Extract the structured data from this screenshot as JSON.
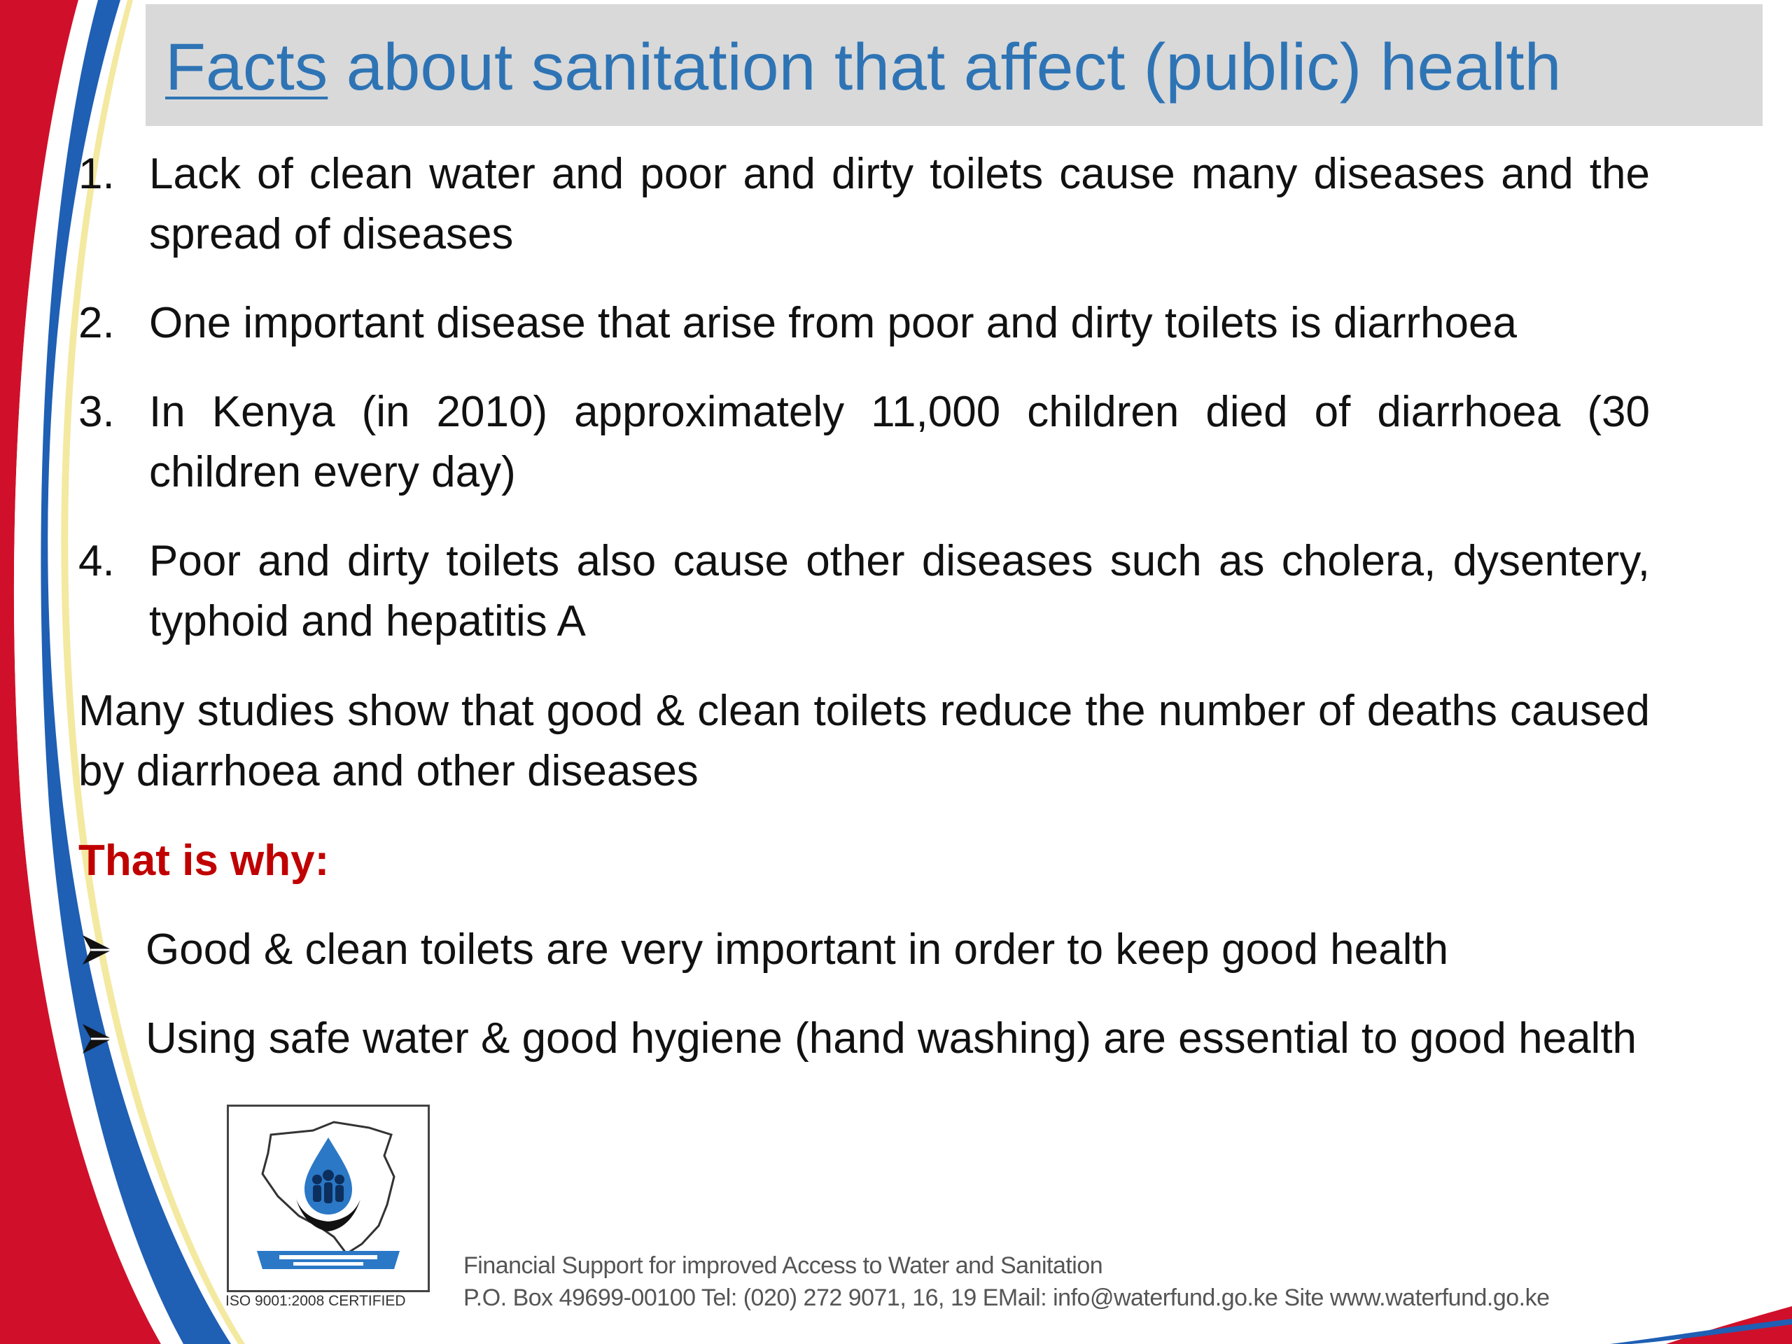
{
  "title": {
    "underlined_word": "Facts",
    "rest": " about sanitation that affect (public) health"
  },
  "numbered_items": [
    {
      "number": "1.",
      "text": "Lack of clean water and poor and dirty toilets cause many diseases and the spread of diseases"
    },
    {
      "number": "2.",
      "text": "One important disease that arise from poor and dirty toilets is diarrhoea"
    },
    {
      "number": "3.",
      "text": "In Kenya (in 2010) approximately 11,000 children died of diarrhoea (30 children every day)"
    },
    {
      "number": "4.",
      "text": "Poor and dirty toilets also cause other diseases such as cholera, dysentery, typhoid and hepatitis A"
    }
  ],
  "paragraph": "Many studies show that good & clean toilets reduce the number of deaths caused by diarrhoea and other diseases",
  "that_is_why": "That is why:",
  "bullets": [
    {
      "icon": "arrow-bullet-icon",
      "text": "Good & clean toilets are very important in order to keep good health"
    },
    {
      "icon": "arrow-bullet-icon",
      "text": "Using safe water & good hygiene (hand washing) are essential to good health"
    }
  ],
  "logo": {
    "icon": "water-sector-trust-fund-logo",
    "certification": "ISO 9001:2008 CERTIFIED"
  },
  "footer": {
    "line1": "Financial Support for improved Access to Water and Sanitation",
    "line2": "P.O. Box 49699-00100 Tel: (020) 272 9071, 16, 19 EMail: info@waterfund.go.ke Site www.waterfund.go.ke"
  },
  "colors": {
    "title": "#2e74b5",
    "title_bar": "#d9d9d9",
    "emphasis": "#c00000",
    "swoosh_blue": "#1f5fb4",
    "swoosh_red": "#d0102a",
    "swoosh_yellow": "#f7f0b0"
  }
}
